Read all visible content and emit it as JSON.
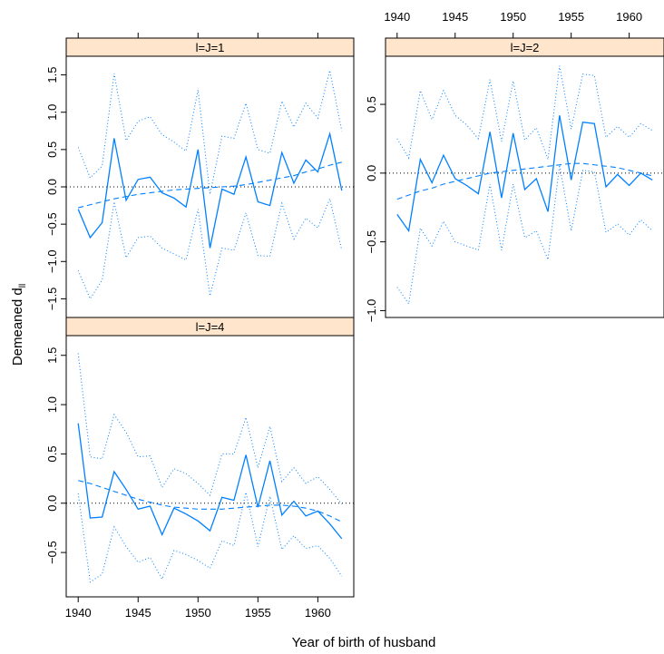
{
  "chart_data": {
    "type": "line",
    "xlabel": "Year of birth of husband",
    "ylabel": "Demeaned d",
    "ylabel_subscript": "ll",
    "x": [
      1940,
      1941,
      1942,
      1943,
      1944,
      1945,
      1946,
      1947,
      1948,
      1949,
      1950,
      1951,
      1952,
      1953,
      1954,
      1955,
      1956,
      1957,
      1958,
      1959,
      1960,
      1961,
      1962
    ],
    "x_ticks": [
      1940,
      1945,
      1950,
      1955,
      1960
    ],
    "xlim": [
      1939,
      1963
    ],
    "colors": {
      "series": "#0080ff",
      "reference": "#000000",
      "strip": "#ffe5cc"
    },
    "panels": [
      {
        "strip": "l=J=1",
        "ylim": [
          -1.75,
          1.75
        ],
        "y_ticks": [
          -1.5,
          -1.0,
          -0.5,
          0.0,
          0.5,
          1.0,
          1.5
        ],
        "y_tick_labels": [
          "−1.5",
          "−1.0",
          "−0.5",
          "0.0",
          "0.5",
          "1.0",
          "1.5"
        ],
        "estimate": [
          -0.3,
          -0.68,
          -0.48,
          0.65,
          -0.18,
          0.1,
          0.13,
          -0.08,
          -0.15,
          -0.27,
          0.5,
          -0.82,
          -0.03,
          -0.1,
          0.4,
          -0.2,
          -0.25,
          0.46,
          0.05,
          0.36,
          0.2,
          0.71,
          -0.05
        ],
        "upper": [
          0.53,
          0.12,
          0.28,
          1.52,
          0.62,
          0.88,
          0.94,
          0.7,
          0.6,
          0.48,
          1.3,
          -0.1,
          0.68,
          0.65,
          1.12,
          0.5,
          0.45,
          1.15,
          0.8,
          1.12,
          0.92,
          1.56,
          0.75
        ],
        "lower": [
          -1.12,
          -1.5,
          -1.25,
          -0.2,
          -0.95,
          -0.68,
          -0.66,
          -0.82,
          -0.9,
          -0.98,
          -0.3,
          -1.46,
          -0.82,
          -0.85,
          -0.35,
          -0.92,
          -0.93,
          -0.22,
          -0.7,
          -0.42,
          -0.55,
          -0.16,
          -0.85
        ],
        "trend": [
          -0.28,
          -0.24,
          -0.2,
          -0.16,
          -0.13,
          -0.1,
          -0.08,
          -0.06,
          -0.04,
          -0.03,
          -0.02,
          -0.01,
          0.0,
          0.01,
          0.03,
          0.06,
          0.09,
          0.12,
          0.15,
          0.2,
          0.24,
          0.29,
          0.33
        ]
      },
      {
        "strip": "l=J=2",
        "ylim": [
          -1.05,
          0.85
        ],
        "y_ticks": [
          -1.0,
          -0.5,
          0.0,
          0.5
        ],
        "y_tick_labels": [
          "−1.0",
          "−0.5",
          "0.0",
          "0.5"
        ],
        "estimate": [
          -0.3,
          -0.42,
          0.1,
          -0.07,
          0.13,
          -0.04,
          -0.09,
          -0.15,
          0.3,
          -0.18,
          0.29,
          -0.12,
          -0.04,
          -0.28,
          0.42,
          -0.05,
          0.37,
          0.36,
          -0.1,
          -0.01,
          -0.09,
          0.0,
          -0.05
        ],
        "upper": [
          0.25,
          0.11,
          0.6,
          0.39,
          0.6,
          0.42,
          0.35,
          0.25,
          0.68,
          0.23,
          0.67,
          0.24,
          0.33,
          0.1,
          0.78,
          0.32,
          0.72,
          0.71,
          0.26,
          0.34,
          0.26,
          0.36,
          0.31
        ],
        "lower": [
          -0.83,
          -0.95,
          -0.4,
          -0.53,
          -0.35,
          -0.5,
          -0.53,
          -0.56,
          -0.08,
          -0.56,
          -0.08,
          -0.47,
          -0.42,
          -0.63,
          0.06,
          -0.42,
          0.02,
          0.01,
          -0.43,
          -0.37,
          -0.45,
          -0.34,
          -0.42
        ],
        "trend": [
          -0.19,
          -0.16,
          -0.13,
          -0.11,
          -0.08,
          -0.06,
          -0.04,
          -0.02,
          0.0,
          0.01,
          0.02,
          0.03,
          0.04,
          0.05,
          0.06,
          0.07,
          0.07,
          0.06,
          0.05,
          0.04,
          0.02,
          0.0,
          -0.02
        ]
      },
      {
        "strip": "l=J=4",
        "ylim": [
          -0.95,
          1.7
        ],
        "y_ticks": [
          -0.5,
          0.0,
          0.5,
          1.0,
          1.5
        ],
        "y_tick_labels": [
          "−0.5",
          "0.0",
          "0.5",
          "1.0",
          "1.5"
        ],
        "estimate": [
          0.81,
          -0.15,
          -0.14,
          0.32,
          0.14,
          -0.06,
          -0.03,
          -0.32,
          -0.05,
          -0.11,
          -0.18,
          -0.28,
          0.06,
          0.03,
          0.49,
          -0.04,
          0.43,
          -0.12,
          0.02,
          -0.13,
          -0.08,
          -0.21,
          -0.36
        ],
        "upper": [
          1.52,
          0.47,
          0.45,
          0.9,
          0.72,
          0.47,
          0.48,
          0.16,
          0.35,
          0.3,
          0.2,
          0.08,
          0.5,
          0.5,
          0.87,
          0.36,
          0.78,
          0.22,
          0.36,
          0.2,
          0.27,
          0.14,
          -0.01
        ],
        "lower": [
          0.1,
          -0.8,
          -0.72,
          -0.24,
          -0.44,
          -0.6,
          -0.55,
          -0.77,
          -0.48,
          -0.52,
          -0.58,
          -0.66,
          -0.38,
          -0.43,
          0.11,
          -0.44,
          0.07,
          -0.47,
          -0.33,
          -0.46,
          -0.43,
          -0.56,
          -0.74
        ],
        "trend": [
          0.23,
          0.2,
          0.16,
          0.12,
          0.08,
          0.04,
          0.01,
          -0.02,
          -0.04,
          -0.05,
          -0.06,
          -0.06,
          -0.06,
          -0.05,
          -0.04,
          -0.03,
          -0.02,
          -0.02,
          -0.03,
          -0.05,
          -0.08,
          -0.13,
          -0.19
        ]
      }
    ]
  }
}
